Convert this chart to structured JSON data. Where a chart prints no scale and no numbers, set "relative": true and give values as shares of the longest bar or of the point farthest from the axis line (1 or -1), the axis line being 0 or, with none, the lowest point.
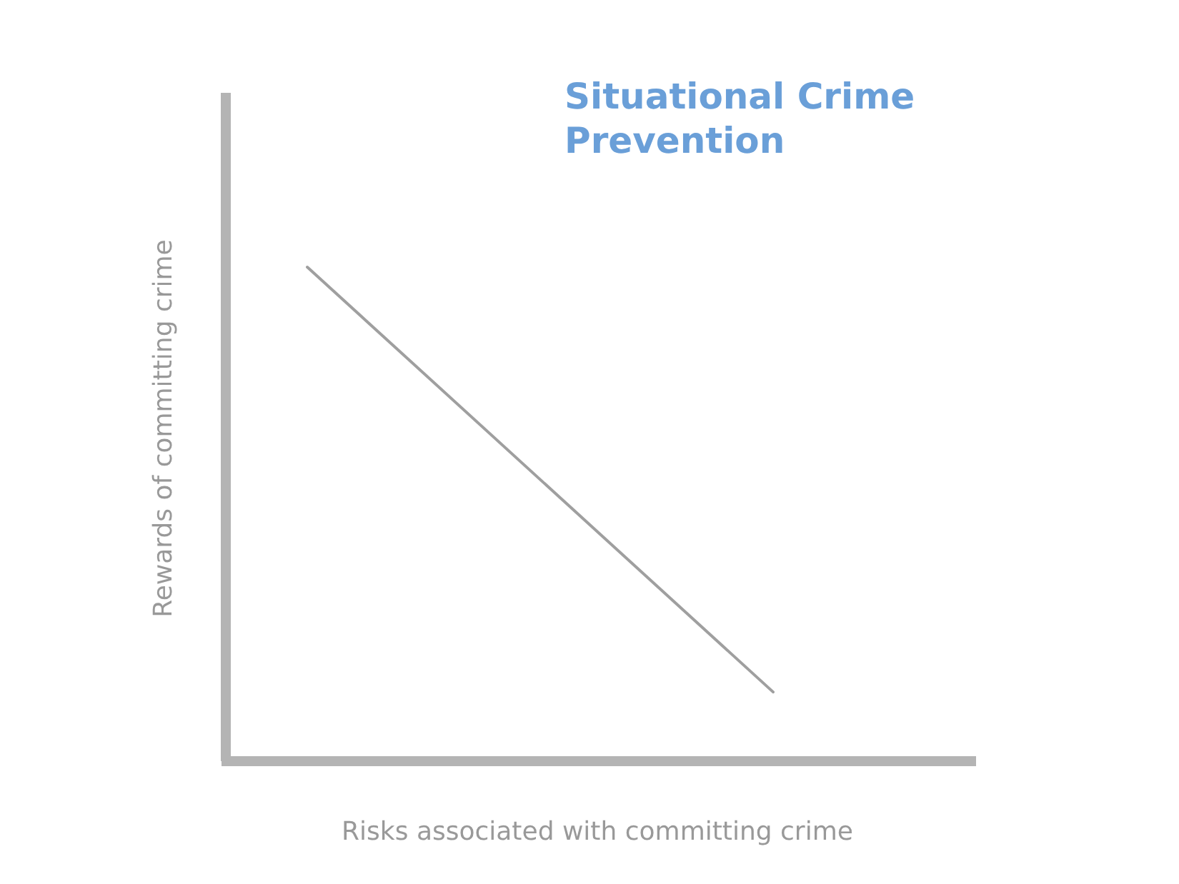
{
  "chart_data": {
    "type": "line",
    "title": "Situational Crime Prevention",
    "xlabel": "Risks associated with committing crime",
    "ylabel": "Rewards of committing crime",
    "relative": true,
    "categories": [
      null,
      null
    ],
    "series": [
      {
        "color": "#9f9f9f",
        "values": [
          1,
          0.14
        ]
      }
    ],
    "legend": false,
    "marker": "none",
    "line_style": "solid"
  }
}
